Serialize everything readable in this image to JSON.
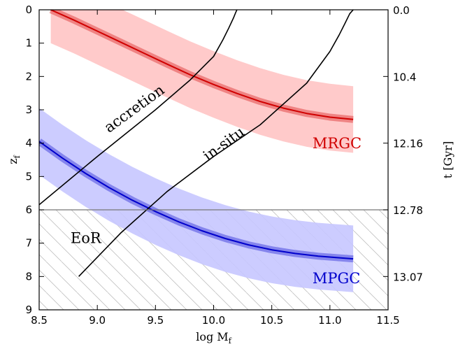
{
  "chart_data": {
    "type": "line",
    "xlabel": "log M",
    "xlabel_sub": "f",
    "ylabel": "z",
    "ylabel_sub": "f",
    "ylabel_right": "t [Gyr]",
    "xlim": [
      8.5,
      11.5
    ],
    "ylim": [
      9,
      0
    ],
    "x_ticks": [
      8.5,
      9.0,
      9.5,
      10.0,
      10.5,
      11.0,
      11.5
    ],
    "x_tick_labels": [
      "8.5",
      "9.0",
      "9.5",
      "10.0",
      "10.5",
      "11.0",
      "11.5"
    ],
    "y_ticks": [
      0,
      1,
      2,
      3,
      4,
      5,
      6,
      7,
      8,
      9
    ],
    "y_tick_labels": [
      "0",
      "1",
      "2",
      "3",
      "4",
      "5",
      "6",
      "7",
      "8",
      "9"
    ],
    "right_ticks": [
      {
        "z": 0,
        "label": "0.0"
      },
      {
        "z": 2,
        "label": "10.4"
      },
      {
        "z": 4,
        "label": "12.16"
      },
      {
        "z": 6,
        "label": "12.78"
      },
      {
        "z": 8,
        "label": "13.07"
      }
    ],
    "eor": {
      "z": 6,
      "label": "EoR",
      "hatched": true
    },
    "series": [
      {
        "name": "MRGC",
        "color": "#d00000",
        "band_color": "#ffc4c4",
        "x": [
          8.6,
          8.8,
          9.0,
          9.2,
          9.4,
          9.6,
          9.8,
          10.0,
          10.2,
          10.4,
          10.6,
          10.8,
          11.0,
          11.2
        ],
        "z": [
          0.0,
          0.31,
          0.64,
          0.97,
          1.3,
          1.63,
          1.95,
          2.24,
          2.51,
          2.75,
          2.95,
          3.11,
          3.22,
          3.29
        ],
        "z_upper": [
          -1.0,
          -0.69,
          -0.36,
          -0.03,
          0.3,
          0.63,
          0.95,
          1.24,
          1.51,
          1.75,
          1.95,
          2.11,
          2.22,
          2.29
        ],
        "z_lower": [
          1.0,
          1.31,
          1.64,
          1.97,
          2.3,
          2.63,
          2.95,
          3.24,
          3.51,
          3.75,
          3.95,
          4.11,
          4.22,
          4.29
        ]
      },
      {
        "name": "MPGC",
        "color": "#0000cc",
        "band_color": "#c6c6ff",
        "x": [
          8.5,
          8.7,
          8.9,
          9.1,
          9.3,
          9.5,
          9.7,
          9.9,
          10.1,
          10.3,
          10.5,
          10.7,
          10.9,
          11.2
        ],
        "z": [
          3.95,
          4.45,
          4.91,
          5.33,
          5.71,
          6.05,
          6.36,
          6.63,
          6.86,
          7.05,
          7.2,
          7.31,
          7.39,
          7.47
        ],
        "z_upper": [
          2.95,
          3.45,
          3.91,
          4.33,
          4.71,
          5.05,
          5.36,
          5.63,
          5.86,
          6.05,
          6.2,
          6.31,
          6.39,
          6.47
        ],
        "z_lower": [
          4.95,
          5.45,
          5.91,
          6.33,
          6.71,
          7.05,
          7.36,
          7.63,
          7.86,
          8.05,
          8.2,
          8.31,
          8.39,
          8.47
        ]
      },
      {
        "name": "accretion",
        "color": "#000000",
        "x": [
          8.5,
          9.0,
          9.5,
          9.8,
          10.0,
          10.08,
          10.13,
          10.17,
          10.19,
          10.2
        ],
        "z": [
          5.85,
          4.4,
          3.0,
          2.1,
          1.4,
          0.9,
          0.55,
          0.25,
          0.08,
          0.0
        ]
      },
      {
        "name": "in-situ",
        "color": "#000000",
        "x": [
          8.84,
          9.2,
          9.6,
          10.0,
          10.4,
          10.8,
          11.0,
          11.08,
          11.13,
          11.17,
          11.2
        ],
        "z": [
          8.0,
          6.7,
          5.45,
          4.4,
          3.45,
          2.2,
          1.25,
          0.75,
          0.4,
          0.12,
          0.0
        ]
      }
    ],
    "annotations": [
      {
        "text": "accretion",
        "x": 9.1,
        "z": 3.7,
        "angle": -36,
        "color": "#000000"
      },
      {
        "text": "in-situ",
        "x": 9.95,
        "z": 4.55,
        "angle": -36,
        "color": "#000000"
      },
      {
        "text": "MRGC",
        "x": 10.85,
        "z": 4.15,
        "angle": 0,
        "color": "#d00000"
      },
      {
        "text": "MPGC",
        "x": 10.85,
        "z": 8.2,
        "angle": 0,
        "color": "#0000cc"
      },
      {
        "text": "EoR",
        "x": 8.77,
        "z": 7.0,
        "angle": 0,
        "color": "#000000"
      }
    ]
  }
}
